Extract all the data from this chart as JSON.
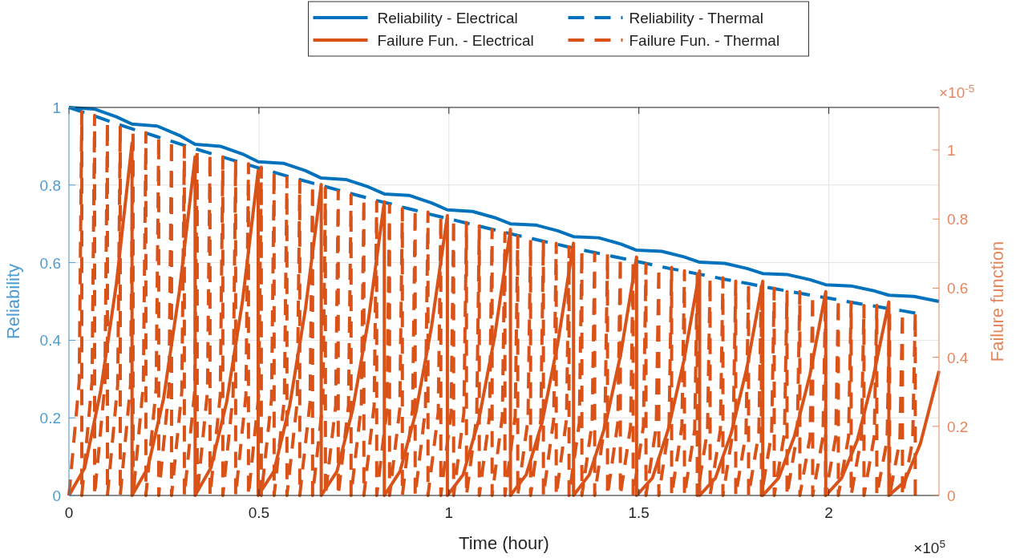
{
  "chart_data": {
    "type": "line",
    "xlabel": "Time (hour)",
    "ylabel": "Reliability",
    "y2label": "Failure function",
    "annotations": [
      "×10$^{5}$",
      "×10$^{-5}$"
    ],
    "xlim": [
      0,
      2.29
    ],
    "xticks": [
      0,
      0.5,
      1,
      1.5,
      2
    ],
    "ylim": [
      0,
      1
    ],
    "yticks": [
      0,
      0.2,
      0.4,
      0.6,
      0.8,
      1
    ],
    "y2lim": [
      0,
      1.123
    ],
    "y2ticks": [
      0,
      0.2,
      0.4,
      0.6,
      0.8,
      1
    ],
    "grid": true,
    "legend": "top",
    "series": [
      {
        "name": "Reliability - Electrical",
        "color": "#0072bd",
        "line_style": "solid",
        "x": [
          0,
          0.0664,
          0.1245,
          0.166,
          0.2324,
          0.2905,
          0.332,
          0.3984,
          0.4565,
          0.498,
          0.5644,
          0.6225,
          0.664,
          0.7304,
          0.7885,
          0.83,
          0.8964,
          0.9545,
          0.996,
          1.0624,
          1.1205,
          1.162,
          1.2284,
          1.2865,
          1.328,
          1.3944,
          1.4525,
          1.494,
          1.5604,
          1.6185,
          1.66,
          1.7264,
          1.7845,
          1.826,
          1.8924,
          1.9505,
          1.992,
          2.0584,
          2.1165,
          2.158,
          2.2244,
          2.29
        ],
        "values": [
          1,
          0.996,
          0.976,
          0.957,
          0.952,
          0.928,
          0.905,
          0.9,
          0.88,
          0.86,
          0.856,
          0.837,
          0.818,
          0.814,
          0.795,
          0.777,
          0.773,
          0.754,
          0.736,
          0.732,
          0.716,
          0.7,
          0.697,
          0.682,
          0.667,
          0.664,
          0.648,
          0.632,
          0.629,
          0.615,
          0.601,
          0.598,
          0.585,
          0.572,
          0.569,
          0.556,
          0.543,
          0.54,
          0.528,
          0.516,
          0.513,
          0.5
        ]
      },
      {
        "name": "Reliability - Thermal",
        "color": "#0072bd",
        "line_style": "dashed",
        "x": [
          0,
          0.03375,
          0.0675,
          0.10125,
          0.135,
          0.16875,
          0.2025,
          0.23625,
          0.27,
          0.30375,
          0.3375,
          0.37125,
          0.405,
          0.43875,
          0.4725,
          0.50625,
          0.54,
          0.57375,
          0.6075,
          0.64125,
          0.675,
          0.70875,
          0.7425,
          0.77625,
          0.81,
          0.84375,
          0.8775,
          0.91125,
          0.945,
          0.97875,
          1.0125,
          1.04625,
          1.08,
          1.11375,
          1.1475,
          1.18125,
          1.215,
          1.24875,
          1.2825,
          1.31625,
          1.35,
          1.38375,
          1.4175,
          1.45125,
          1.485,
          1.51875,
          1.5525,
          1.58625,
          1.62,
          1.65375,
          1.6875,
          1.72125,
          1.755,
          1.78875,
          1.8225,
          1.85625,
          1.89,
          1.92375,
          1.9575,
          1.99125,
          2.025,
          2.05875,
          2.0925,
          2.12625,
          2.16,
          2.19375,
          2.2275
        ],
        "values": [
          1,
          0.989,
          0.978,
          0.966,
          0.955,
          0.944,
          0.934,
          0.923,
          0.913,
          0.902,
          0.892,
          0.882,
          0.872,
          0.862,
          0.852,
          0.842,
          0.833,
          0.823,
          0.814,
          0.805,
          0.796,
          0.787,
          0.778,
          0.769,
          0.76,
          0.752,
          0.743,
          0.735,
          0.726,
          0.718,
          0.71,
          0.702,
          0.694,
          0.686,
          0.678,
          0.67,
          0.663,
          0.655,
          0.648,
          0.64,
          0.633,
          0.626,
          0.619,
          0.612,
          0.605,
          0.598,
          0.591,
          0.584,
          0.578,
          0.571,
          0.565,
          0.558,
          0.552,
          0.546,
          0.539,
          0.533,
          0.527,
          0.521,
          0.515,
          0.51,
          0.504,
          0.498,
          0.492,
          0.487,
          0.481,
          0.476,
          0.47
        ]
      },
      {
        "name": "Failure Fun. - Electrical",
        "color": "#d95319",
        "line_style": "solid",
        "axis": "y2",
        "x": [
          0,
          0.0415,
          0.083,
          0.1245,
          0.166,
          0.166,
          0.2075,
          0.249,
          0.2905,
          0.332,
          0.332,
          0.3735,
          0.415,
          0.4565,
          0.498,
          0.498,
          0.5395,
          0.581,
          0.6225,
          0.664,
          0.664,
          0.7055,
          0.747,
          0.7885,
          0.83,
          0.83,
          0.8715,
          0.913,
          0.9545,
          0.996,
          0.996,
          1.0375,
          1.079,
          1.1205,
          1.162,
          1.162,
          1.2035,
          1.245,
          1.2865,
          1.328,
          1.328,
          1.3695,
          1.411,
          1.4525,
          1.494,
          1.494,
          1.5355,
          1.577,
          1.6185,
          1.66,
          1.66,
          1.7015,
          1.743,
          1.7845,
          1.826,
          1.826,
          1.8675,
          1.909,
          1.9505,
          1.992,
          1.992,
          2.0335,
          2.075,
          2.1165,
          2.158,
          2.158,
          2.1995,
          2.241,
          2.29
        ],
        "values": [
          0,
          0.08,
          0.3,
          0.61,
          1.02,
          0,
          0.08,
          0.28,
          0.59,
          0.98,
          0,
          0.08,
          0.27,
          0.56,
          0.94,
          0,
          0.07,
          0.26,
          0.54,
          0.9,
          0,
          0.07,
          0.25,
          0.51,
          0.85,
          0,
          0.07,
          0.24,
          0.49,
          0.81,
          0,
          0.06,
          0.22,
          0.46,
          0.77,
          0,
          0.06,
          0.21,
          0.44,
          0.73,
          0,
          0.06,
          0.2,
          0.41,
          0.69,
          0,
          0.05,
          0.19,
          0.39,
          0.65,
          0,
          0.05,
          0.18,
          0.37,
          0.62,
          0,
          0.05,
          0.17,
          0.35,
          0.59,
          0,
          0.05,
          0.16,
          0.34,
          0.56,
          0,
          0.04,
          0.15,
          0.36
        ]
      },
      {
        "name": "Failure Fun. - Thermal",
        "color": "#d95319",
        "line_style": "dashed",
        "axis": "y2",
        "x": [
          0,
          0.027,
          0.03375,
          0.03375,
          0.06075,
          0.0675,
          0.0675,
          0.0945,
          0.10125,
          0.10125,
          0.12825,
          0.135,
          0.135,
          0.162,
          0.16875,
          0.16875,
          0.19575,
          0.2025,
          0.2025,
          0.2295,
          0.23625,
          0.23625,
          0.26325,
          0.27,
          0.27,
          0.297,
          0.30375,
          0.30375,
          0.33075,
          0.3375,
          0.3375,
          0.3645,
          0.37125,
          0.37125,
          0.39825,
          0.405,
          0.405,
          0.432,
          0.43875,
          0.43875,
          0.46575,
          0.4725,
          0.4725,
          0.4995,
          0.50625,
          0.50625,
          0.53325,
          0.54,
          0.54,
          0.567,
          0.57375,
          0.57375,
          0.60075,
          0.6075,
          0.6075,
          0.6345,
          0.64125,
          0.64125,
          0.66825,
          0.675,
          0.675,
          0.702,
          0.70875,
          0.70875,
          0.73575,
          0.7425,
          0.7425,
          0.7695,
          0.77625,
          0.77625,
          0.80325,
          0.81,
          0.81,
          0.837,
          0.84375,
          0.84375,
          0.87075,
          0.8775,
          0.8775,
          0.9045,
          0.91125,
          0.91125,
          0.93825,
          0.945,
          0.945,
          0.972,
          0.97875,
          0.97875,
          1.00575,
          1.0125,
          1.0125,
          1.0395,
          1.04625,
          1.04625,
          1.07325,
          1.08,
          1.08,
          1.107,
          1.11375,
          1.11375,
          1.14075,
          1.1475,
          1.1475,
          1.1745,
          1.18125,
          1.18125,
          1.20825,
          1.215,
          1.215,
          1.242,
          1.24875,
          1.24875,
          1.27575,
          1.2825,
          1.2825,
          1.3095,
          1.31625,
          1.31625,
          1.34325,
          1.35,
          1.35,
          1.377,
          1.38375,
          1.38375,
          1.41075,
          1.4175,
          1.4175,
          1.4445,
          1.45125,
          1.45125,
          1.47825,
          1.485,
          1.485,
          1.512,
          1.51875,
          1.51875,
          1.54575,
          1.5525,
          1.5525,
          1.5795,
          1.58625,
          1.58625,
          1.61325,
          1.62,
          1.62,
          1.647,
          1.65375,
          1.65375,
          1.68075,
          1.6875,
          1.6875,
          1.7145,
          1.72125,
          1.72125,
          1.74825,
          1.755,
          1.755,
          1.782,
          1.78875,
          1.78875,
          1.81575,
          1.8225,
          1.8225,
          1.8495,
          1.85625,
          1.85625,
          1.88325,
          1.89,
          1.89,
          1.917,
          1.92375,
          1.92375,
          1.95075,
          1.9575,
          1.9575,
          1.9845,
          1.99125,
          1.99125,
          2.01825,
          2.025,
          2.025,
          2.052,
          2.05875,
          2.05875,
          2.08575,
          2.0925,
          2.0925,
          2.1195,
          2.12625,
          2.12625,
          2.15325,
          2.16,
          2.16,
          2.187,
          2.19375,
          2.19375,
          2.22075,
          2.2275,
          2.2275
        ],
        "values": [
          0,
          0.33,
          1.11,
          0,
          0.33,
          1.1,
          0,
          0.32,
          1.08,
          0,
          0.32,
          1.07,
          0,
          0.32,
          1.06,
          0,
          0.32,
          1.05,
          0,
          0.31,
          1.04,
          0,
          0.31,
          1.03,
          0,
          0.3,
          1.01,
          0,
          0.3,
          1,
          0,
          0.3,
          0.99,
          0,
          0.29,
          0.98,
          0,
          0.29,
          0.97,
          0,
          0.29,
          0.96,
          0,
          0.29,
          0.95,
          0,
          0.28,
          0.94,
          0,
          0.28,
          0.92,
          0,
          0.27,
          0.91,
          0,
          0.27,
          0.9,
          0,
          0.27,
          0.89,
          0,
          0.26,
          0.88,
          0,
          0.26,
          0.87,
          0,
          0.26,
          0.86,
          0,
          0.26,
          0.85,
          0,
          0.25,
          0.84,
          0,
          0.25,
          0.83,
          0,
          0.25,
          0.83,
          0,
          0.25,
          0.82,
          0,
          0.24,
          0.81,
          0,
          0.24,
          0.8,
          0,
          0.24,
          0.79,
          0,
          0.23,
          0.78,
          0,
          0.23,
          0.77,
          0,
          0.23,
          0.76,
          0,
          0.23,
          0.75,
          0,
          0.22,
          0.74,
          0,
          0.22,
          0.74,
          0,
          0.22,
          0.73,
          0,
          0.22,
          0.72,
          0,
          0.21,
          0.71,
          0,
          0.21,
          0.7,
          0,
          0.21,
          0.7,
          0,
          0.21,
          0.69,
          0,
          0.2,
          0.68,
          0,
          0.2,
          0.67,
          0,
          0.2,
          0.66,
          0,
          0.2,
          0.66,
          0,
          0.2,
          0.65,
          0,
          0.19,
          0.64,
          0,
          0.19,
          0.63,
          0,
          0.19,
          0.63,
          0,
          0.19,
          0.62,
          0,
          0.18,
          0.61,
          0,
          0.18,
          0.61,
          0,
          0.18,
          0.6,
          0,
          0.18,
          0.59,
          0,
          0.18,
          0.59,
          0,
          0.17,
          0.58,
          0,
          0.17,
          0.57,
          0,
          0.17,
          0.57,
          0,
          0.17,
          0.56,
          0,
          0.17,
          0.55,
          0,
          0.17,
          0.55,
          0,
          0.16,
          0.54,
          0,
          0.16,
          0.53,
          0,
          0.16,
          0.53,
          0
        ]
      }
    ]
  }
}
